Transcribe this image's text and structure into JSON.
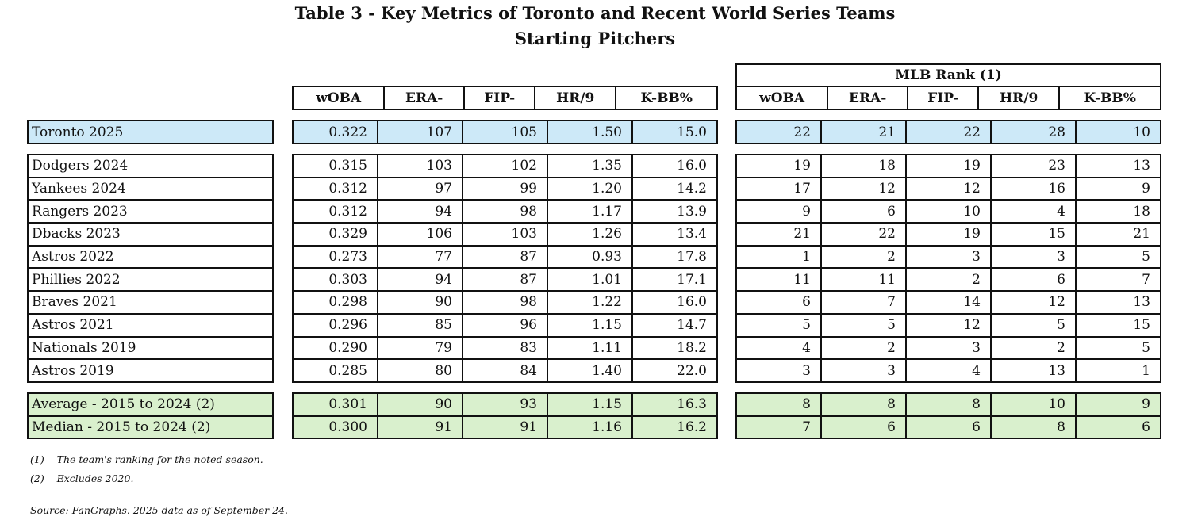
{
  "title": "Table 3 - Key Metrics of Toronto and Recent World Series Teams",
  "subtitle": "Starting Pitchers",
  "metrics_headers": [
    "wOBA",
    "ERA-",
    "FIP-",
    "HR/9",
    "K-BB%"
  ],
  "rank_group_header": "MLB Rank (1)",
  "rank_headers": [
    "wOBA",
    "ERA-",
    "FIP-",
    "HR/9",
    "K-BB%"
  ],
  "highlight_colors": {
    "toronto": "#cde9f8",
    "summary": "#d9f0cd"
  },
  "toronto": {
    "team": "Toronto 2025",
    "metrics": [
      "0.322",
      "107",
      "105",
      "1.50",
      "15.0"
    ],
    "ranks": [
      "22",
      "21",
      "22",
      "28",
      "10"
    ]
  },
  "teams": [
    {
      "team": "Dodgers 2024",
      "metrics": [
        "0.315",
        "103",
        "102",
        "1.35",
        "16.0"
      ],
      "ranks": [
        "19",
        "18",
        "19",
        "23",
        "13"
      ]
    },
    {
      "team": "Yankees 2024",
      "metrics": [
        "0.312",
        "97",
        "99",
        "1.20",
        "14.2"
      ],
      "ranks": [
        "17",
        "12",
        "12",
        "16",
        "9"
      ]
    },
    {
      "team": "Rangers 2023",
      "metrics": [
        "0.312",
        "94",
        "98",
        "1.17",
        "13.9"
      ],
      "ranks": [
        "9",
        "6",
        "10",
        "4",
        "18"
      ]
    },
    {
      "team": "Dbacks 2023",
      "metrics": [
        "0.329",
        "106",
        "103",
        "1.26",
        "13.4"
      ],
      "ranks": [
        "21",
        "22",
        "19",
        "15",
        "21"
      ]
    },
    {
      "team": "Astros 2022",
      "metrics": [
        "0.273",
        "77",
        "87",
        "0.93",
        "17.8"
      ],
      "ranks": [
        "1",
        "2",
        "3",
        "3",
        "5"
      ]
    },
    {
      "team": "Phillies 2022",
      "metrics": [
        "0.303",
        "94",
        "87",
        "1.01",
        "17.1"
      ],
      "ranks": [
        "11",
        "11",
        "2",
        "6",
        "7"
      ]
    },
    {
      "team": "Braves 2021",
      "metrics": [
        "0.298",
        "90",
        "98",
        "1.22",
        "16.0"
      ],
      "ranks": [
        "6",
        "7",
        "14",
        "12",
        "13"
      ]
    },
    {
      "team": "Astros 2021",
      "metrics": [
        "0.296",
        "85",
        "96",
        "1.15",
        "14.7"
      ],
      "ranks": [
        "5",
        "5",
        "12",
        "5",
        "15"
      ]
    },
    {
      "team": "Nationals 2019",
      "metrics": [
        "0.290",
        "79",
        "83",
        "1.11",
        "18.2"
      ],
      "ranks": [
        "4",
        "2",
        "3",
        "2",
        "5"
      ]
    },
    {
      "team": "Astros 2019",
      "metrics": [
        "0.285",
        "80",
        "84",
        "1.40",
        "22.0"
      ],
      "ranks": [
        "3",
        "3",
        "4",
        "13",
        "1"
      ]
    }
  ],
  "summary": [
    {
      "team": "Average - 2015 to 2024 (2)",
      "metrics": [
        "0.301",
        "90",
        "93",
        "1.15",
        "16.3"
      ],
      "ranks": [
        "8",
        "8",
        "8",
        "10",
        "9"
      ]
    },
    {
      "team": "Median - 2015 to 2024 (2)",
      "metrics": [
        "0.300",
        "91",
        "91",
        "1.16",
        "16.2"
      ],
      "ranks": [
        "7",
        "6",
        "6",
        "8",
        "6"
      ]
    }
  ],
  "footnotes": [
    {
      "marker": "(1)",
      "text": "The team's ranking for the noted season."
    },
    {
      "marker": "(2)",
      "text": "Excludes 2020."
    }
  ],
  "source": "Source: FanGraphs. 2025 data as of September 24."
}
